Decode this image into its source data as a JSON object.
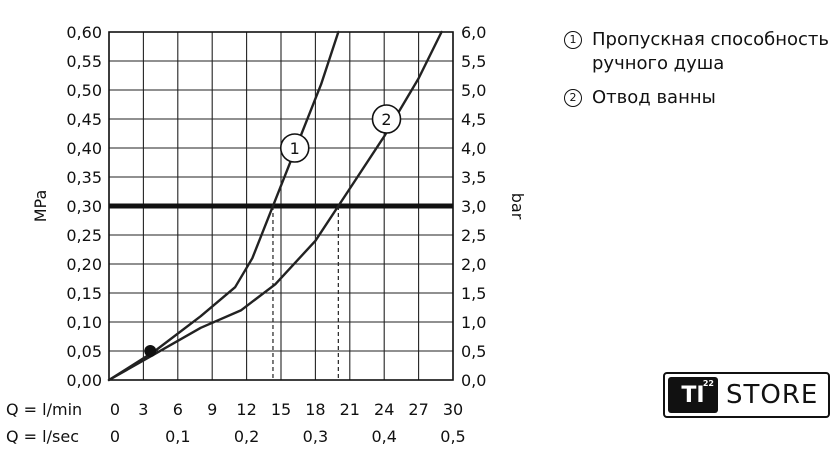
{
  "chart_data": {
    "type": "line",
    "title": "",
    "y_left_label": "MPa",
    "y_right_label": "bar",
    "y_left_ticks": [
      "0,00",
      "0,05",
      "0,10",
      "0,15",
      "0,20",
      "0,25",
      "0,30",
      "0,35",
      "0,40",
      "0,45",
      "0,50",
      "0,55",
      "0,60"
    ],
    "y_right_ticks": [
      "0,0",
      "0,5",
      "1,0",
      "1,5",
      "2,0",
      "2,5",
      "3,0",
      "3,5",
      "4,0",
      "4,5",
      "5,0",
      "5,5",
      "6,0"
    ],
    "ylim": [
      0,
      0.6
    ],
    "x_rows": [
      {
        "label": "Q = l/min",
        "ticks": [
          "0",
          "3",
          "6",
          "9",
          "12",
          "15",
          "18",
          "21",
          "24",
          "27",
          "30"
        ],
        "positions": [
          0,
          3,
          6,
          9,
          12,
          15,
          18,
          21,
          24,
          27,
          30
        ]
      },
      {
        "label": "Q = l/sec",
        "ticks": [
          "0",
          "0,1",
          "0,2",
          "0,3",
          "0,4",
          "0,5"
        ],
        "positions": [
          0,
          6,
          12,
          18,
          24,
          30
        ]
      }
    ],
    "xlim": [
      0,
      30
    ],
    "grid": true,
    "reference_line": {
      "y": 0.3
    },
    "marker": {
      "x": 3.6,
      "y": 0.05
    },
    "series": [
      {
        "id": "1",
        "label_pos": {
          "x": 16.2,
          "y": 0.4
        },
        "x": [
          0,
          4,
          8,
          11,
          12.5,
          14.5,
          16.5,
          18.5,
          20
        ],
        "y": [
          0,
          0.05,
          0.11,
          0.16,
          0.21,
          0.31,
          0.41,
          0.51,
          0.6
        ]
      },
      {
        "id": "2",
        "label_pos": {
          "x": 24.2,
          "y": 0.45
        },
        "x": [
          0,
          4,
          8,
          11.5,
          14.5,
          18,
          21,
          24,
          27,
          29
        ],
        "y": [
          0,
          0.045,
          0.09,
          0.12,
          0.165,
          0.24,
          0.33,
          0.42,
          0.52,
          0.6
        ]
      }
    ]
  },
  "legend": [
    {
      "num": "1",
      "text": "Пропускная способность ручного душа"
    },
    {
      "num": "2",
      "text": "Отвод ванны"
    }
  ],
  "logo": {
    "mark": "TI",
    "sup": "22",
    "text": "STORE"
  }
}
